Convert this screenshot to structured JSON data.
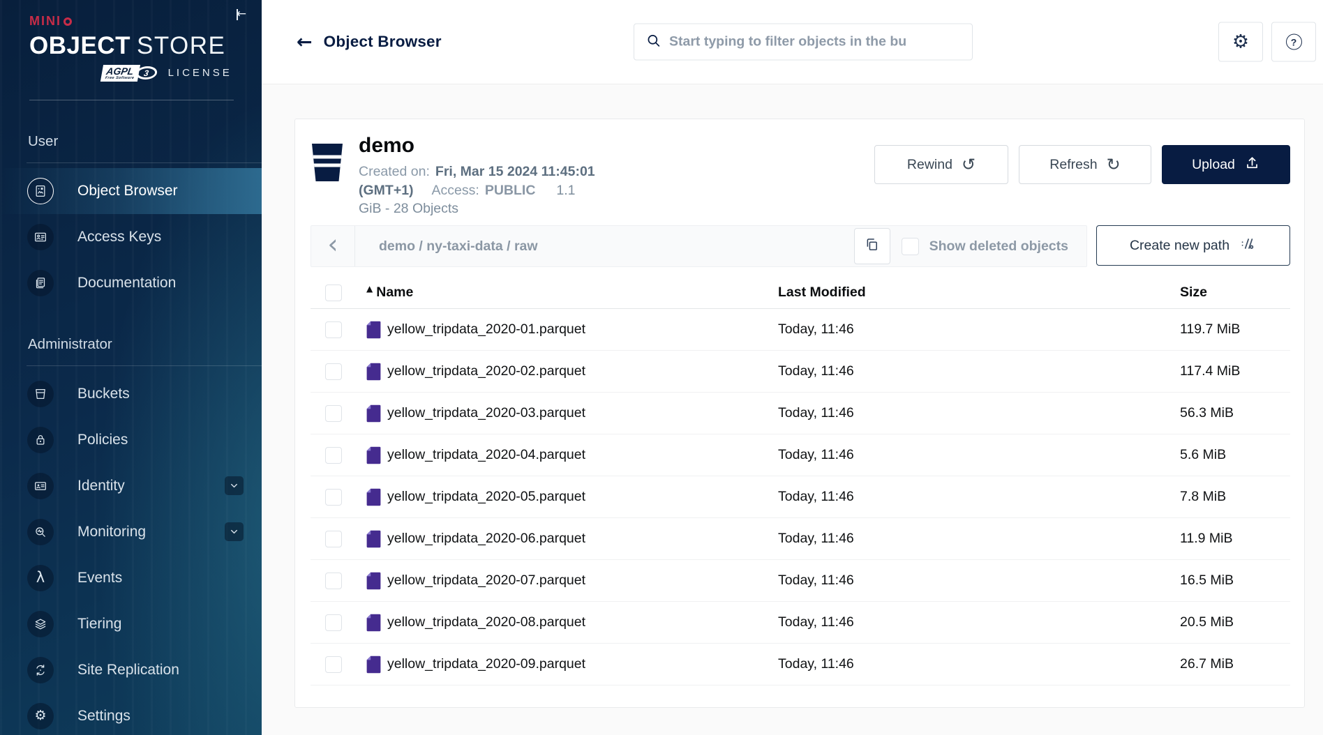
{
  "brand": {
    "minio_prefix": "MIN",
    "minio_i": "I",
    "object": "OBJECT",
    "store": "STORE",
    "agpl": "AGPL",
    "agpl_sub": "Free Software",
    "v3": "3",
    "license": "LICENSE"
  },
  "sidebar": {
    "sections": [
      {
        "label": "User",
        "items": [
          {
            "label": "Object Browser",
            "icon": "object-browser-icon",
            "selected": true
          },
          {
            "label": "Access Keys",
            "icon": "access-keys-icon"
          },
          {
            "label": "Documentation",
            "icon": "documentation-icon"
          }
        ]
      },
      {
        "label": "Administrator",
        "items": [
          {
            "label": "Buckets",
            "icon": "bucket-icon"
          },
          {
            "label": "Policies",
            "icon": "policy-lock-icon"
          },
          {
            "label": "Identity",
            "icon": "identity-card-icon",
            "chevron": true
          },
          {
            "label": "Monitoring",
            "icon": "monitoring-icon",
            "chevron": true
          },
          {
            "label": "Events",
            "icon": "lambda-icon"
          },
          {
            "label": "Tiering",
            "icon": "tiering-layers-icon"
          },
          {
            "label": "Site Replication",
            "icon": "site-replication-icon"
          },
          {
            "label": "Settings",
            "icon": "settings-gear-icon"
          }
        ]
      }
    ]
  },
  "topbar": {
    "title": "Object Browser",
    "search_placeholder": "Start typing to filter objects in the bu"
  },
  "bucket": {
    "name": "demo",
    "created_label": "Created on:",
    "created_value": "Fri, Mar 15 2024 11:45:01 (GMT+1)",
    "access_label": "Access:",
    "access_value": "PUBLIC",
    "size_first": "1.1",
    "size_second": "GiB - 28 Objects"
  },
  "actions": {
    "rewind": "Rewind",
    "refresh": "Refresh",
    "upload": "Upload"
  },
  "path_bar": {
    "path": "demo / ny-taxi-data / raw",
    "show_deleted_label": "Show deleted objects",
    "create_path_label": "Create new path"
  },
  "table": {
    "columns": {
      "name": "Name",
      "modified": "Last Modified",
      "size": "Size"
    },
    "rows": [
      {
        "name": "yellow_tripdata_2020-01.parquet",
        "modified": "Today, 11:46",
        "size": "119.7 MiB"
      },
      {
        "name": "yellow_tripdata_2020-02.parquet",
        "modified": "Today, 11:46",
        "size": "117.4 MiB"
      },
      {
        "name": "yellow_tripdata_2020-03.parquet",
        "modified": "Today, 11:46",
        "size": "56.3 MiB"
      },
      {
        "name": "yellow_tripdata_2020-04.parquet",
        "modified": "Today, 11:46",
        "size": "5.6 MiB"
      },
      {
        "name": "yellow_tripdata_2020-05.parquet",
        "modified": "Today, 11:46",
        "size": "7.8 MiB"
      },
      {
        "name": "yellow_tripdata_2020-06.parquet",
        "modified": "Today, 11:46",
        "size": "11.9 MiB"
      },
      {
        "name": "yellow_tripdata_2020-07.parquet",
        "modified": "Today, 11:46",
        "size": "16.5 MiB"
      },
      {
        "name": "yellow_tripdata_2020-08.parquet",
        "modified": "Today, 11:46",
        "size": "20.5 MiB"
      },
      {
        "name": "yellow_tripdata_2020-09.parquet",
        "modified": "Today, 11:46",
        "size": "26.7 MiB"
      }
    ]
  },
  "colors": {
    "brand_navy": "#081C42",
    "brand_red": "#C72C48",
    "file_icon_purple": "#452B8F",
    "selected_item_blue": "#2D6A8F"
  }
}
